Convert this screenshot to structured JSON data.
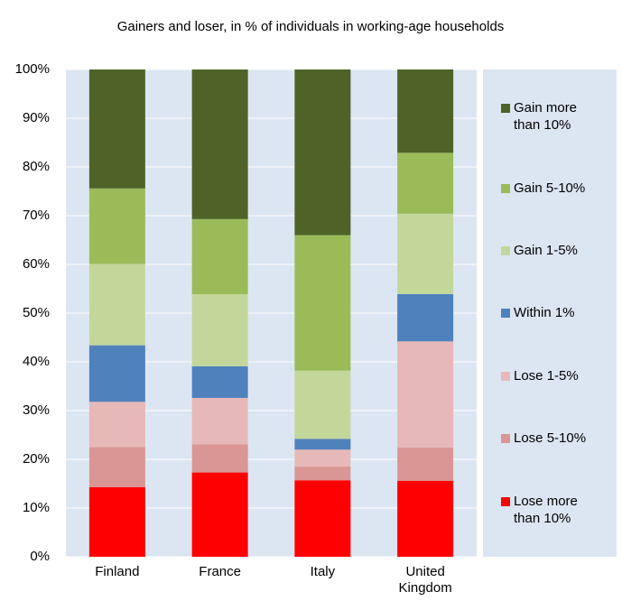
{
  "chart_data": {
    "type": "stacked-bar",
    "title": "Gainers and loser, in % of individuals in working-age households",
    "categories": [
      "Finland",
      "France",
      "Italy",
      "United Kingdom"
    ],
    "series": [
      {
        "name": "Lose more than 10%",
        "color": "#ff0000",
        "values": [
          14.3,
          17.3,
          15.7,
          15.6
        ]
      },
      {
        "name": "Lose 5-10%",
        "color": "#d99694",
        "values": [
          8.2,
          5.8,
          2.8,
          6.8
        ]
      },
      {
        "name": "Lose 1-5%",
        "color": "#e6b9b8",
        "values": [
          9.3,
          9.5,
          3.5,
          21.8
        ]
      },
      {
        "name": "Within 1%",
        "color": "#4f81bd",
        "values": [
          11.6,
          6.5,
          2.2,
          9.7
        ]
      },
      {
        "name": "Gain 1-5%",
        "color": "#c4d79b",
        "values": [
          16.7,
          14.8,
          14.0,
          16.5
        ]
      },
      {
        "name": "Gain 5-10%",
        "color": "#9bbb59",
        "values": [
          15.5,
          15.4,
          27.8,
          12.5
        ]
      },
      {
        "name": "Gain more than 10%",
        "color": "#4f6228",
        "values": [
          24.4,
          30.7,
          34.0,
          17.1
        ]
      }
    ],
    "ylim": [
      0,
      100
    ],
    "yticks": [
      {
        "value": 0,
        "label": "0%"
      },
      {
        "value": 10,
        "label": "10%"
      },
      {
        "value": 20,
        "label": "20%"
      },
      {
        "value": 30,
        "label": "30%"
      },
      {
        "value": 40,
        "label": "40%"
      },
      {
        "value": 50,
        "label": "50%"
      },
      {
        "value": 60,
        "label": "60%"
      },
      {
        "value": 70,
        "label": "70%"
      },
      {
        "value": 80,
        "label": "80%"
      },
      {
        "value": 90,
        "label": "90%"
      },
      {
        "value": 100,
        "label": "100%"
      }
    ],
    "grid": true
  }
}
